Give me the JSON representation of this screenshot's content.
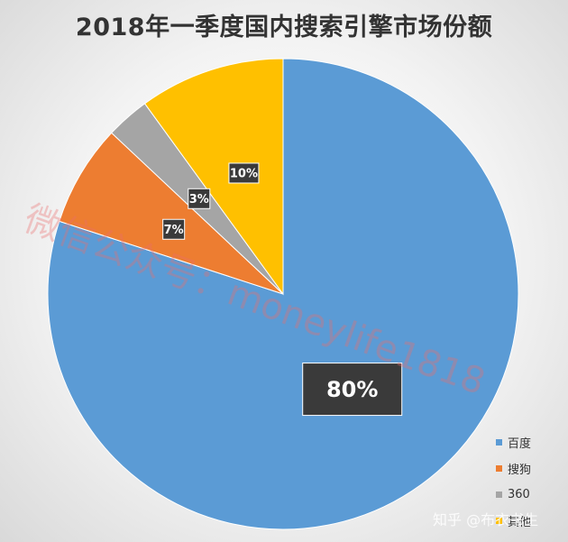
{
  "chart_data": {
    "type": "pie",
    "title": "2018年一季度国内搜索引擎市场份额",
    "categories": [
      "百度",
      "搜狗",
      "360",
      "其他"
    ],
    "values": [
      80,
      7,
      3,
      10
    ],
    "data_labels": [
      "80%",
      "7%",
      "3%",
      "10%"
    ],
    "colors": [
      "#5b9bd5",
      "#ed7d31",
      "#a5a5a5",
      "#ffc000"
    ],
    "legend_position": "bottom-right"
  },
  "legend": {
    "items": [
      {
        "label": "百度",
        "color": "#5b9bd5"
      },
      {
        "label": "搜狗",
        "color": "#ed7d31"
      },
      {
        "label": "360",
        "color": "#a5a5a5"
      },
      {
        "label": "其他",
        "color": "#ffc000"
      }
    ]
  },
  "watermark": "微信公众号：moneylife1818",
  "attribution": "知乎 @布衣书生"
}
